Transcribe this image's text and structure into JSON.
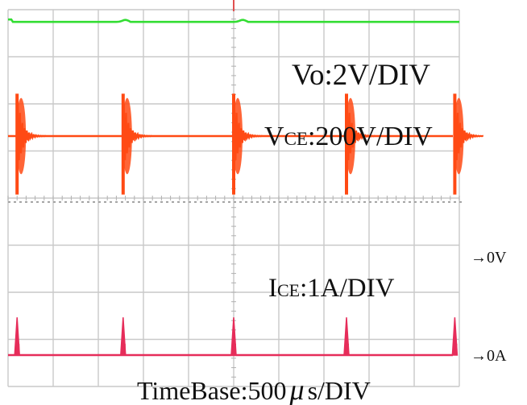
{
  "chart_data": {
    "type": "line",
    "title": "",
    "grid": true,
    "grid_divisions": {
      "x": 10,
      "y": 8
    },
    "series": [
      {
        "label": "Vo:2V/DIV",
        "label_main": "Vo",
        "label_scale": ":2V/DIV",
        "color": "#33dd33",
        "form": "dc-level-with-small-steps",
        "level_div": 7.1,
        "events_div": [
          2.6,
          5.2
        ]
      },
      {
        "label": "VCE:200V/DIV",
        "label_main": "V",
        "label_sub": "CE",
        "label_scale": ":200V/DIV",
        "color": "#ff4a14",
        "form": "square-with-ringing",
        "high_level_div": 4.65,
        "zero_level_div": 3.25,
        "ring_amplitude_div": 0.9,
        "edges_div": [
          0.2,
          2.55,
          5.0,
          7.5,
          9.9
        ]
      },
      {
        "label": "ICE:1A/DIV",
        "label_main": "I",
        "label_sub": "CE",
        "label_scale": ":1A/DIV",
        "color": "#e62d5a",
        "form": "pulse-train",
        "zero_level_div": 0.0,
        "pulse_height_div": 0.8,
        "pulses_div": [
          0.2,
          2.55,
          5.0,
          7.5,
          9.9
        ]
      }
    ],
    "markers": [
      {
        "text": "→0V",
        "level_div": 3.25
      },
      {
        "text": "→0A",
        "level_div": 0.0
      }
    ],
    "timebase_label_pre": "TimeBase:500",
    "timebase_label_mu": "μ",
    "timebase_label_post": "s/DIV"
  }
}
